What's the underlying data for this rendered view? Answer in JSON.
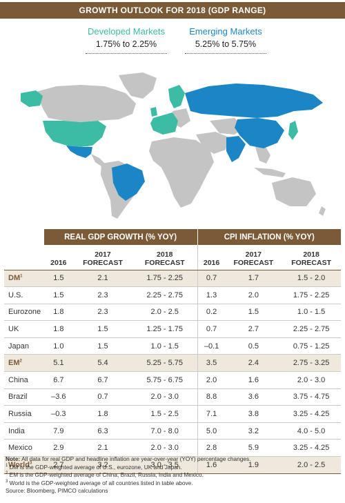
{
  "title": "GROWTH OUTLOOK FOR 2018 (GDP RANGE)",
  "legend": {
    "developed": {
      "name": "Developed Markets",
      "range": "1.75% to 2.25%",
      "color": "#3cbca5"
    },
    "emerging": {
      "name": "Emerging Markets",
      "range": "5.25% to 5.75%",
      "color": "#1b86c6"
    }
  },
  "table": {
    "group_headers": [
      "REAL GDP GROWTH (% YOY)",
      "CPI INFLATION (% YOY)"
    ],
    "columns": [
      "2016",
      "2017 FORECAST",
      "2018 FORECAST",
      "2016",
      "2017 FORECAST",
      "2018 FORECAST"
    ],
    "rows": [
      {
        "label": "DM",
        "sup": "1",
        "agg": true,
        "values": [
          "1.5",
          "2.1",
          "1.75 - 2.25",
          "0.7",
          "1.7",
          "1.5 - 2.0"
        ]
      },
      {
        "label": "U.S.",
        "sup": "",
        "agg": false,
        "values": [
          "1.5",
          "2.3",
          "2.25 - 2.75",
          "1.3",
          "2.0",
          "1.75 - 2.25"
        ]
      },
      {
        "label": "Eurozone",
        "sup": "",
        "agg": false,
        "values": [
          "1.8",
          "2.3",
          "2.0 - 2.5",
          "0.2",
          "1.5",
          "1.0 - 1.5"
        ]
      },
      {
        "label": "UK",
        "sup": "",
        "agg": false,
        "values": [
          "1.8",
          "1.5",
          "1.25 - 1.75",
          "0.7",
          "2.7",
          "2.25 - 2.75"
        ]
      },
      {
        "label": "Japan",
        "sup": "",
        "agg": false,
        "values": [
          "1.0",
          "1.5",
          "1.0 - 1.5",
          "–0.1",
          "0.5",
          "0.75 - 1.25"
        ]
      },
      {
        "label": "EM",
        "sup": "2",
        "agg": true,
        "values": [
          "5.1",
          "5.4",
          "5.25 - 5.75",
          "3.5",
          "2.4",
          "2.75 - 3.25"
        ]
      },
      {
        "label": "China",
        "sup": "",
        "agg": false,
        "values": [
          "6.7",
          "6.7",
          "5.75 - 6.75",
          "2.0",
          "1.6",
          "2.0 - 3.0"
        ]
      },
      {
        "label": "Brazil",
        "sup": "",
        "agg": false,
        "values": [
          "–3.6",
          "0.7",
          "2.0 - 3.0",
          "8.8",
          "3.6",
          "3.75 - 4.75"
        ]
      },
      {
        "label": "Russia",
        "sup": "",
        "agg": false,
        "values": [
          "–0.3",
          "1.8",
          "1.5 - 2.5",
          "7.1",
          "3.8",
          "3.25 - 4.25"
        ]
      },
      {
        "label": "India",
        "sup": "",
        "agg": false,
        "values": [
          "7.9",
          "6.3",
          "7.0 - 8.0",
          "5.0",
          "3.2",
          "4.0 - 5.0"
        ]
      },
      {
        "label": "Mexico",
        "sup": "",
        "agg": false,
        "values": [
          "2.9",
          "2.1",
          "2.0 - 3.0",
          "2.8",
          "5.9",
          "3.25 - 4.25"
        ]
      },
      {
        "label": "World",
        "sup": "3",
        "agg": true,
        "values": [
          "2.7",
          "3.2",
          "3.0 - 3.5",
          "1.6",
          "1.9",
          "2.0 - 2.5"
        ]
      }
    ]
  },
  "notes": {
    "note_label": "Note:",
    "note_text": "All data for real GDP and headline inflation are year-over-year (YOY) percentage changes.",
    "fn1": "DM is the GDP-weighted average of U.S., eurozone, UK and Japan.",
    "fn2": "EM is the GDP-weighted average of China, Brazil, Russia, India and Mexico.",
    "fn3": "World is the GDP-weighted average of all countries listed in table above.",
    "source": "Source: Bloomberg, PIMCO calculations"
  }
}
